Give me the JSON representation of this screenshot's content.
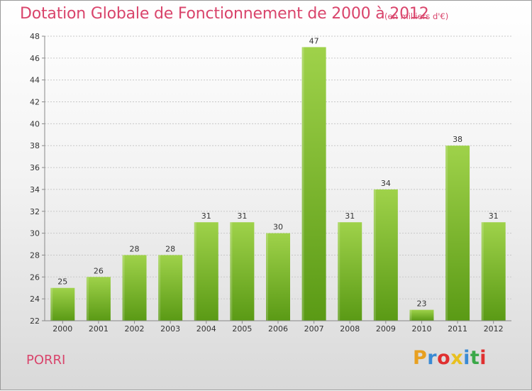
{
  "header": {
    "title": "Dotation Globale de Fonctionnement de 2000 à 2012",
    "unit": "(en milliers d'€)"
  },
  "footer": {
    "place": "PORRI",
    "logo_letters": [
      "P",
      "r",
      "o",
      "x",
      "i",
      "t",
      "i"
    ]
  },
  "colors": {
    "title": "#d9446b",
    "bar_top": "#9fd24a",
    "bar_bottom": "#5a9a15",
    "grid": "#c8c8c8",
    "logo": [
      "#e8a020",
      "#3a8ad4",
      "#e03030",
      "#e8c020",
      "#3a8ad4",
      "#3aa848",
      "#e03030"
    ]
  },
  "chart_data": {
    "type": "bar",
    "title": "Dotation Globale de Fonctionnement de 2000 à 2012",
    "subtitle": "(en milliers d'€)",
    "xlabel": "",
    "ylabel": "",
    "categories": [
      "2000",
      "2001",
      "2002",
      "2003",
      "2004",
      "2005",
      "2006",
      "2007",
      "2008",
      "2009",
      "2010",
      "2011",
      "2012"
    ],
    "values": [
      25,
      26,
      28,
      28,
      31,
      31,
      30,
      47,
      31,
      34,
      23,
      38,
      31
    ],
    "ylim": [
      22,
      48
    ],
    "yticks": [
      22,
      24,
      26,
      28,
      30,
      32,
      34,
      36,
      38,
      40,
      42,
      44,
      46,
      48
    ],
    "grid": true,
    "legend": "none"
  }
}
